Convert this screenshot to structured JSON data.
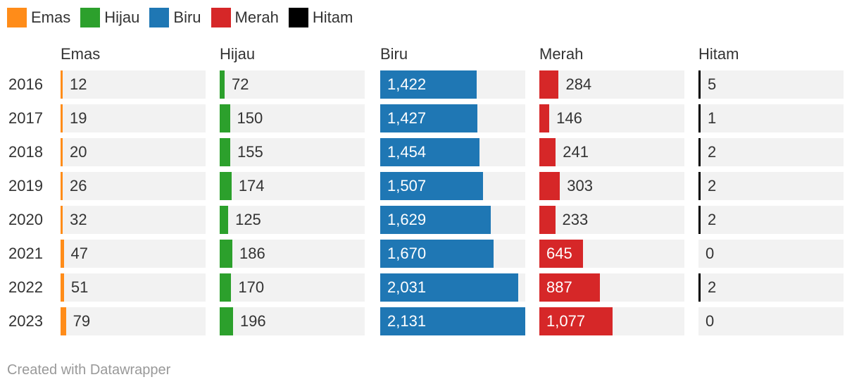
{
  "legend": [
    {
      "label": "Emas",
      "color": "#ff8c19"
    },
    {
      "label": "Hijau",
      "color": "#2ca02c"
    },
    {
      "label": "Biru",
      "color": "#1f77b4"
    },
    {
      "label": "Merah",
      "color": "#d62728"
    },
    {
      "label": "Hitam",
      "color": "#000000"
    }
  ],
  "footer": "Created with Datawrapper",
  "chart_data": {
    "type": "bar",
    "categories": [
      "2016",
      "2017",
      "2018",
      "2019",
      "2020",
      "2021",
      "2022",
      "2023"
    ],
    "series": [
      {
        "name": "Emas",
        "color": "#ff8c19",
        "values": [
          12,
          19,
          20,
          26,
          32,
          47,
          51,
          79
        ],
        "labels": [
          "12",
          "19",
          "20",
          "26",
          "32",
          "47",
          "51",
          "79"
        ]
      },
      {
        "name": "Hijau",
        "color": "#2ca02c",
        "values": [
          72,
          150,
          155,
          174,
          125,
          186,
          170,
          196
        ],
        "labels": [
          "72",
          "150",
          "155",
          "174",
          "125",
          "186",
          "170",
          "196"
        ]
      },
      {
        "name": "Biru",
        "color": "#1f77b4",
        "values": [
          1422,
          1427,
          1454,
          1507,
          1629,
          1670,
          2031,
          2131
        ],
        "labels": [
          "1,422",
          "1,427",
          "1,454",
          "1,507",
          "1,629",
          "1,670",
          "2,031",
          "2,131"
        ]
      },
      {
        "name": "Merah",
        "color": "#d62728",
        "values": [
          284,
          146,
          241,
          303,
          233,
          645,
          887,
          1077
        ],
        "labels": [
          "284",
          "146",
          "241",
          "303",
          "233",
          "645",
          "887",
          "1,077"
        ]
      },
      {
        "name": "Hitam",
        "color": "#000000",
        "values": [
          5,
          1,
          2,
          2,
          2,
          0,
          2,
          0
        ],
        "labels": [
          "5",
          "1",
          "2",
          "2",
          "2",
          "0",
          "2",
          "0"
        ]
      }
    ]
  }
}
